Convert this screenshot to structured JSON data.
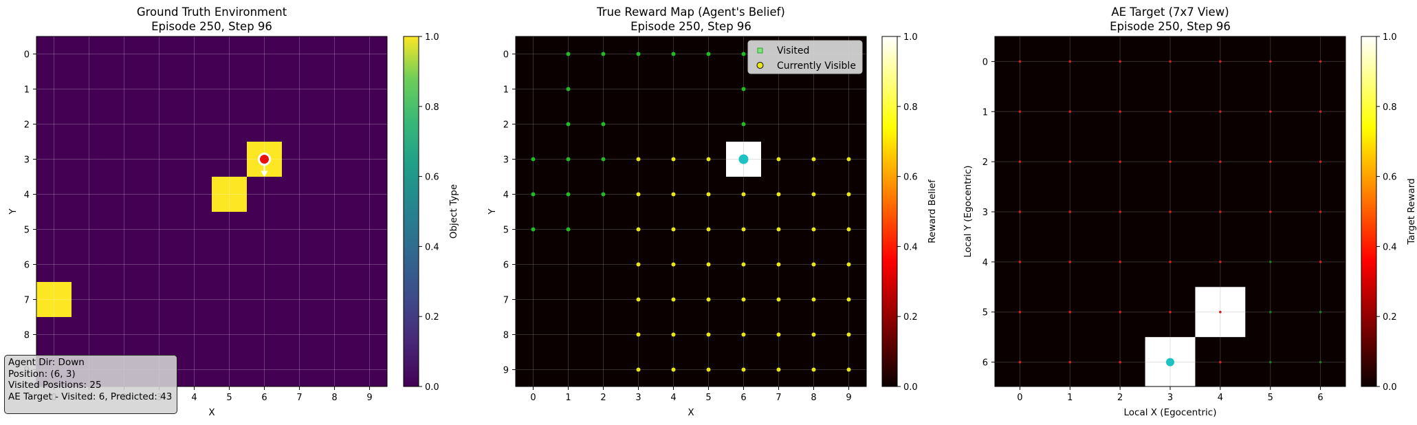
{
  "info_box": {
    "line1": "Agent Dir: Down",
    "line2": "Position: (6, 3)",
    "line3": "Visited Positions: 25",
    "line4": "AE Target - Visited: 6, Predicted: 43"
  },
  "chart_data": [
    {
      "type": "heatmap",
      "title": "Ground Truth Environment",
      "subtitle": "Episode 250, Step 96",
      "xlabel": "X",
      "ylabel": "Y",
      "x_ticks": [
        "0",
        "1",
        "2",
        "3",
        "4",
        "5",
        "6",
        "7",
        "8",
        "9"
      ],
      "y_ticks": [
        "0",
        "1",
        "2",
        "3",
        "4",
        "5",
        "6",
        "7",
        "8",
        "9"
      ],
      "colormap": "viridis",
      "colorbar": {
        "label": "Object Type",
        "range": [
          0,
          1
        ],
        "ticks": [
          "0.0",
          "0.2",
          "0.4",
          "0.6",
          "0.8",
          "1.0"
        ]
      },
      "grid": true,
      "cells": [
        {
          "x": 6,
          "y": 3,
          "value": 1.0
        },
        {
          "x": 5,
          "y": 4,
          "value": 1.0
        },
        {
          "x": 0,
          "y": 7,
          "value": 1.0
        }
      ],
      "background_value": 0.0,
      "agent": {
        "x": 6,
        "y": 3,
        "direction": "down",
        "color": "#e8120c"
      }
    },
    {
      "type": "heatmap",
      "title": "True Reward Map (Agent's Belief)",
      "subtitle": "Episode 250, Step 96",
      "xlabel": "X",
      "ylabel": "Y",
      "x_ticks": [
        "0",
        "1",
        "2",
        "3",
        "4",
        "5",
        "6",
        "7",
        "8",
        "9"
      ],
      "y_ticks": [
        "0",
        "1",
        "2",
        "3",
        "4",
        "5",
        "6",
        "7",
        "8",
        "9"
      ],
      "colormap": "hot",
      "colorbar": {
        "label": "Reward Belief",
        "range": [
          0,
          1
        ],
        "ticks": [
          "0.0",
          "0.2",
          "0.4",
          "0.6",
          "0.8",
          "1.0"
        ]
      },
      "grid": true,
      "cells": [
        {
          "x": 6,
          "y": 3,
          "value": 1.0
        }
      ],
      "background_value": 0.0,
      "agent": {
        "x": 6,
        "y": 3,
        "color": "#1ec2c2"
      },
      "legend": {
        "position": "upper right",
        "items": [
          "Visited",
          "Currently Visible"
        ],
        "colors": [
          "#22bb22",
          "#e6e61a"
        ]
      },
      "visited": [
        [
          1,
          0
        ],
        [
          2,
          0
        ],
        [
          3,
          0
        ],
        [
          4,
          0
        ],
        [
          5,
          0
        ],
        [
          6,
          0
        ],
        [
          1,
          1
        ],
        [
          6,
          1
        ],
        [
          1,
          2
        ],
        [
          2,
          2
        ],
        [
          6,
          2
        ],
        [
          0,
          3
        ],
        [
          1,
          3
        ],
        [
          2,
          3
        ],
        [
          0,
          4
        ],
        [
          1,
          4
        ],
        [
          2,
          4
        ],
        [
          0,
          5
        ],
        [
          1,
          5
        ]
      ],
      "visible_rows": {
        "from_y": 3,
        "to_y": 9,
        "from_x": 3,
        "to_x": 9
      }
    },
    {
      "type": "heatmap",
      "title": "AE Target (7x7 View)",
      "subtitle": "Episode 250, Step 96",
      "xlabel": "Local X (Egocentric)",
      "ylabel": "Local Y (Egocentric)",
      "x_ticks": [
        "0",
        "1",
        "2",
        "3",
        "4",
        "5",
        "6"
      ],
      "y_ticks": [
        "0",
        "1",
        "2",
        "3",
        "4",
        "5",
        "6"
      ],
      "colormap": "hot",
      "colorbar": {
        "label": "Target Reward",
        "range": [
          0,
          1
        ],
        "ticks": [
          "0.0",
          "0.2",
          "0.4",
          "0.6",
          "0.8",
          "1.0"
        ]
      },
      "grid": true,
      "cells": [
        {
          "x": 4,
          "y": 5,
          "value": 1.0
        },
        {
          "x": 3,
          "y": 6,
          "value": 1.0
        }
      ],
      "background_value": 0.0,
      "agent": {
        "x": 3,
        "y": 6,
        "color": "#1ec2c2"
      },
      "green_markers": [
        [
          5,
          4
        ],
        [
          5,
          5
        ],
        [
          6,
          5
        ],
        [
          5,
          6
        ],
        [
          6,
          6
        ]
      ]
    }
  ]
}
